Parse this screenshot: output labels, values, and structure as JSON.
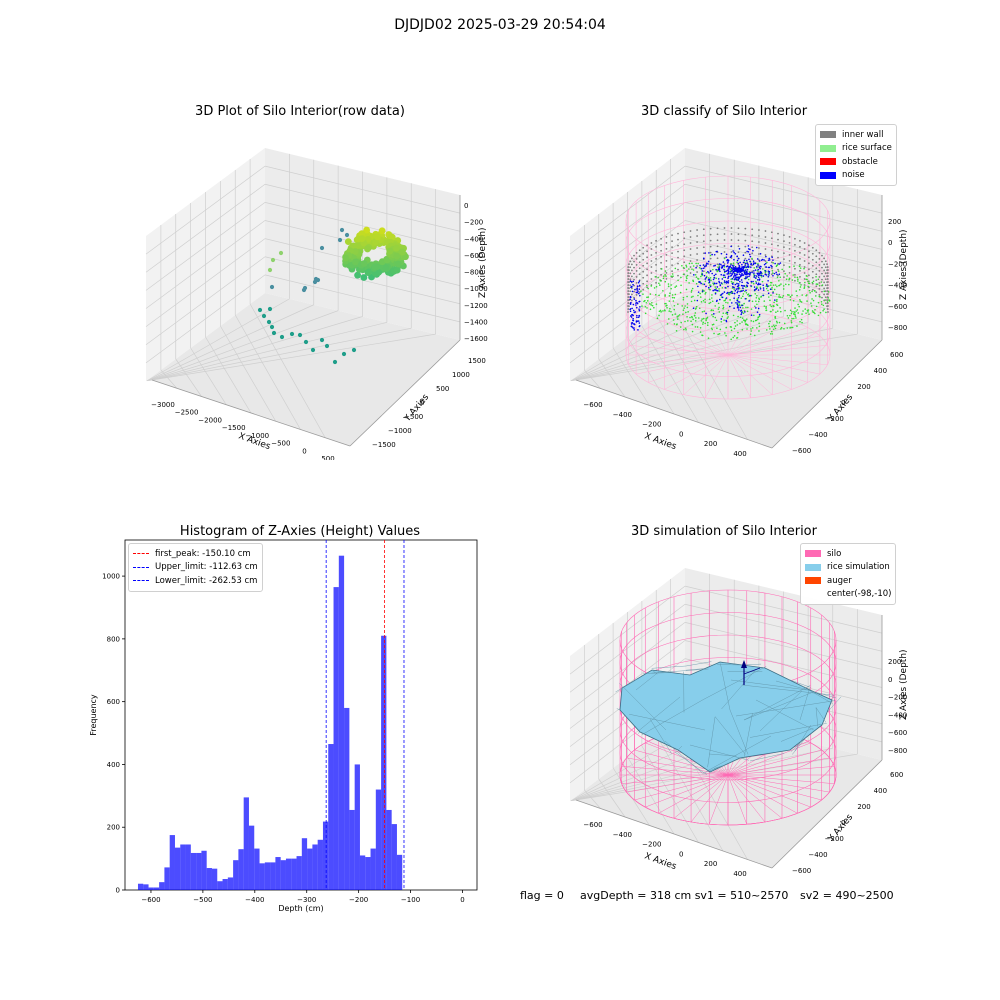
{
  "suptitle": "DJDJD02 2025-03-29 20:54:04",
  "panels": {
    "raw": {
      "title": "3D Plot of Silo Interior(row data)",
      "xlabel": "X Axies",
      "ylabel": "Y Axies",
      "zlabel": "Z Axies (Depth)",
      "x_ticks": [
        "−3000",
        "−2500",
        "−2000",
        "−1500",
        "−1000",
        "−500",
        "0",
        "500"
      ],
      "y_ticks": [
        "1500",
        "1000",
        "500",
        "0",
        "−500",
        "−1000",
        "−1500"
      ],
      "z_ticks": [
        "0",
        "−200",
        "−400",
        "−600",
        "−800",
        "−1000",
        "−1200",
        "−1400",
        "−1600"
      ]
    },
    "classify": {
      "title": "3D classify of Silo Interior",
      "xlabel": "X Axies",
      "ylabel": "Y Axies",
      "zlabel": "Z Axies (Depth)",
      "x_ticks": [
        "−600",
        "−400",
        "−200",
        "0",
        "200",
        "400"
      ],
      "y_ticks": [
        "600",
        "400",
        "200",
        "0",
        "−200",
        "−400",
        "−600"
      ],
      "z_ticks": [
        "200",
        "0",
        "−200",
        "−400",
        "−600",
        "−800"
      ],
      "legend": [
        {
          "label": "inner wall",
          "color": "#808080"
        },
        {
          "label": "rice surface",
          "color": "#90ee90"
        },
        {
          "label": "obstacle",
          "color": "#ff0000"
        },
        {
          "label": "noise",
          "color": "#0000ff"
        }
      ]
    },
    "simulation": {
      "title": "3D simulation of Silo Interior",
      "xlabel": "X Axies",
      "ylabel": "Y Axies",
      "zlabel": "Z Axies (Depth)",
      "x_ticks": [
        "−600",
        "−400",
        "−200",
        "0",
        "200",
        "400"
      ],
      "y_ticks": [
        "600",
        "400",
        "200",
        "0",
        "−200",
        "−400",
        "−600"
      ],
      "z_ticks": [
        "200",
        "0",
        "−200",
        "−400",
        "−600",
        "−800"
      ],
      "legend": [
        {
          "label": "silo",
          "color": "#ff69b4"
        },
        {
          "label": "rice simulation",
          "color": "#87ceeb"
        },
        {
          "label": "auger",
          "color": "#ff4500"
        },
        {
          "label": "center(-98,-10)",
          "color": "none"
        }
      ]
    }
  },
  "status": {
    "flag": "flag = 0",
    "avg": "avgDepth = 318 cm  sv1 = 510~2570",
    "sv2": "sv2 = 490~2500"
  },
  "colors": {
    "bars": "#0000ff",
    "first_peak_line": "#ff0000",
    "limit_lines": "#0000ff",
    "silo": "#ff69b4",
    "rice": "#87ceeb",
    "inner_wall": "#808080",
    "rice_surface": "#90ee90",
    "noise": "#0000ff"
  },
  "chart_data": {
    "type": "bar",
    "title": "Histogram of Z-Axies (Height) Values",
    "xlabel": "Depth (cm)",
    "ylabel": "Frequency",
    "xlim": [
      -650,
      28
    ],
    "ylim": [
      0,
      1115
    ],
    "x_ticks": [
      -600,
      -500,
      -400,
      -300,
      -200,
      -100,
      0
    ],
    "x_tick_labels": [
      "−600",
      "−500",
      "−400",
      "−300",
      "−200",
      "−100",
      "0"
    ],
    "y_ticks": [
      0,
      200,
      400,
      600,
      800,
      1000
    ],
    "bin_start": -625,
    "bin_width": 10.18,
    "values": [
      20,
      18,
      8,
      8,
      25,
      72,
      175,
      135,
      145,
      145,
      118,
      118,
      125,
      70,
      68,
      28,
      35,
      40,
      95,
      130,
      295,
      205,
      132,
      85,
      88,
      88,
      105,
      95,
      100,
      100,
      108,
      165,
      132,
      145,
      160,
      218,
      465,
      965,
      1065,
      580,
      255,
      400,
      110,
      105,
      132,
      320,
      810,
      255,
      210,
      112
    ],
    "vlines": [
      {
        "label": "first_peak: -150.10 cm",
        "x": -150.1,
        "color": "#ff0000"
      },
      {
        "label": "Upper_limit: -112.63 cm",
        "x": -112.63,
        "color": "#0000ff"
      },
      {
        "label": "Lower_limit: -262.53 cm",
        "x": -262.53,
        "color": "#0000ff"
      }
    ]
  }
}
